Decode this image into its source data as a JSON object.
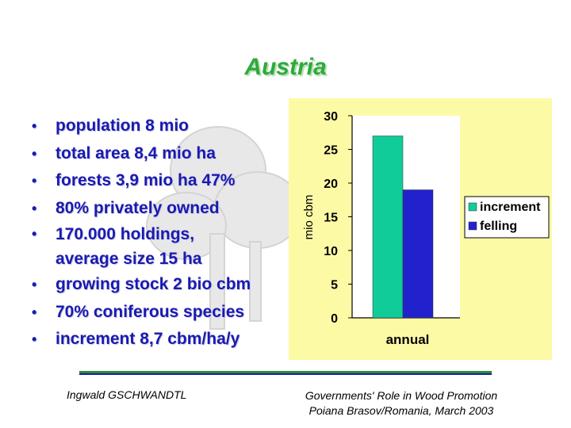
{
  "slide": {
    "title": "Austria",
    "bullets": [
      "population  8 mio",
      "total area   8,4 mio ha",
      "forests  3,9 mio ha  47%",
      "80% privately owned",
      "170.000 holdings, average size 15 ha",
      "growing stock 2 bio cbm",
      "70% coniferous species",
      "increment 8,7 cbm/ha/y"
    ],
    "bullet_lines_4": [
      "170.000 holdings,",
      "average size 15 ha"
    ],
    "footer_left": "Ingwald GSCHWANDTL",
    "footer_right_line1": "Governments' Role in Wood Promotion",
    "footer_right_line2": "Poiana Brasov/Romania, March 2003"
  },
  "colors": {
    "title": "#2eaa3a",
    "bullet_text": "#1a1ab0",
    "chart_background": "#fdfaa6",
    "footer_line_green": "#2e8b2e",
    "footer_line_blue": "#1a1ab0"
  },
  "chart_data": {
    "type": "bar",
    "categories": [
      "annual"
    ],
    "series": [
      {
        "name": "increment",
        "values": [
          27
        ],
        "color": "#10cc99"
      },
      {
        "name": "felling",
        "values": [
          19
        ],
        "color": "#2222cc"
      }
    ],
    "title": "",
    "xlabel": "",
    "ylabel": "mio cbm",
    "ylim": [
      0,
      30
    ],
    "yticks": [
      0,
      5,
      10,
      15,
      20,
      25,
      30
    ],
    "legend_position": "right",
    "grid": false
  }
}
